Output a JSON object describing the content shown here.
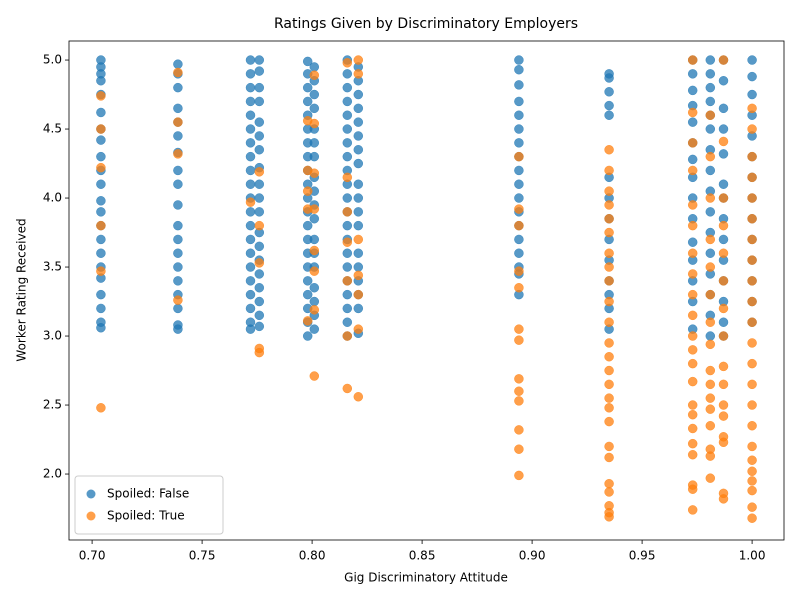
{
  "chart_data": {
    "type": "scatter",
    "title": "Ratings Given by Discriminatory Employers",
    "x_label": "Gig Discriminatory Attitude",
    "y_label": "Worker Rating Received",
    "xlim": [
      0.6895,
      1.0145
    ],
    "ylim": [
      1.522,
      5.138
    ],
    "xticks": [
      {
        "value": 0.7,
        "label": "0.70"
      },
      0.75,
      {
        "value": 0.8,
        "label": "0.80"
      },
      0.85,
      {
        "value": 0.9,
        "label": "0.90"
      },
      0.95,
      {
        "value": 1.0,
        "label": "1.00"
      }
    ],
    "yticks": [
      {
        "value": 2.0,
        "label": "2.0"
      },
      2.5,
      {
        "value": 3.0,
        "label": "3.0"
      },
      3.5,
      {
        "value": 4.0,
        "label": "4.0"
      },
      4.5,
      {
        "value": 5.0,
        "label": "5.0"
      }
    ],
    "legend": "lower left",
    "series": [
      {
        "name": "Spoiled: False",
        "color": "#1f77b4",
        "x": [
          0.704,
          0.704,
          0.704,
          0.704,
          0.704,
          0.704,
          0.704,
          0.704,
          0.704,
          0.704,
          0.704,
          0.704,
          0.704,
          0.704,
          0.704,
          0.704,
          0.704,
          0.704,
          0.704,
          0.704,
          0.704,
          0.704,
          0.739,
          0.739,
          0.739,
          0.739,
          0.739,
          0.739,
          0.739,
          0.739,
          0.739,
          0.739,
          0.739,
          0.739,
          0.739,
          0.739,
          0.739,
          0.739,
          0.739,
          0.739,
          0.739,
          0.772,
          0.772,
          0.772,
          0.772,
          0.772,
          0.772,
          0.772,
          0.772,
          0.772,
          0.772,
          0.772,
          0.772,
          0.772,
          0.772,
          0.772,
          0.772,
          0.772,
          0.772,
          0.772,
          0.772,
          0.772,
          0.776,
          0.776,
          0.776,
          0.776,
          0.776,
          0.776,
          0.776,
          0.776,
          0.776,
          0.776,
          0.776,
          0.776,
          0.776,
          0.776,
          0.776,
          0.776,
          0.776,
          0.776,
          0.776,
          0.798,
          0.798,
          0.798,
          0.798,
          0.798,
          0.798,
          0.798,
          0.798,
          0.798,
          0.798,
          0.798,
          0.798,
          0.798,
          0.798,
          0.798,
          0.798,
          0.798,
          0.798,
          0.798,
          0.798,
          0.798,
          0.801,
          0.801,
          0.801,
          0.801,
          0.801,
          0.801,
          0.801,
          0.801,
          0.801,
          0.801,
          0.801,
          0.801,
          0.801,
          0.801,
          0.801,
          0.801,
          0.801,
          0.801,
          0.816,
          0.816,
          0.816,
          0.816,
          0.816,
          0.816,
          0.816,
          0.816,
          0.816,
          0.816,
          0.816,
          0.816,
          0.816,
          0.816,
          0.816,
          0.816,
          0.816,
          0.816,
          0.816,
          0.816,
          0.816,
          0.821,
          0.821,
          0.821,
          0.821,
          0.821,
          0.821,
          0.821,
          0.821,
          0.821,
          0.821,
          0.821,
          0.821,
          0.821,
          0.821,
          0.821,
          0.821,
          0.821,
          0.821,
          0.894,
          0.894,
          0.894,
          0.894,
          0.894,
          0.894,
          0.894,
          0.894,
          0.894,
          0.894,
          0.894,
          0.894,
          0.894,
          0.894,
          0.894,
          0.894,
          0.894,
          0.894,
          0.935,
          0.935,
          0.935,
          0.935,
          0.935,
          0.935,
          0.935,
          0.935,
          0.935,
          0.935,
          0.935,
          0.935,
          0.935,
          0.935,
          0.973,
          0.973,
          0.973,
          0.973,
          0.973,
          0.973,
          0.973,
          0.973,
          0.973,
          0.973,
          0.973,
          0.973,
          0.973,
          0.973,
          0.973,
          0.981,
          0.981,
          0.981,
          0.981,
          0.981,
          0.981,
          0.981,
          0.981,
          0.981,
          0.981,
          0.981,
          0.981,
          0.981,
          0.981,
          0.981,
          0.981,
          0.987,
          0.987,
          0.987,
          0.987,
          0.987,
          0.987,
          0.987,
          0.987,
          0.987,
          0.987,
          0.987,
          0.987,
          0.987,
          0.987,
          1.0,
          1.0,
          1.0,
          1.0,
          1.0,
          1.0,
          1.0,
          1.0,
          1.0,
          1.0,
          1.0,
          1.0,
          1.0,
          1.0
        ],
        "values": [
          5.0,
          4.95,
          4.9,
          4.85,
          4.75,
          4.62,
          4.5,
          4.42,
          4.3,
          4.2,
          4.1,
          3.98,
          3.9,
          3.8,
          3.7,
          3.6,
          3.5,
          3.42,
          3.3,
          3.2,
          3.1,
          3.06,
          4.97,
          4.9,
          4.8,
          4.65,
          4.55,
          4.45,
          4.33,
          4.2,
          4.1,
          3.95,
          3.8,
          3.7,
          3.6,
          3.5,
          3.4,
          3.3,
          3.2,
          3.08,
          3.05,
          5.0,
          4.9,
          4.8,
          4.7,
          4.6,
          4.5,
          4.4,
          4.3,
          4.2,
          4.1,
          4.0,
          3.9,
          3.8,
          3.7,
          3.6,
          3.5,
          3.4,
          3.3,
          3.2,
          3.1,
          3.05,
          5.0,
          4.92,
          4.8,
          4.7,
          4.55,
          4.45,
          4.35,
          4.22,
          4.1,
          4.0,
          3.9,
          3.75,
          3.65,
          3.55,
          3.45,
          3.35,
          3.25,
          3.15,
          3.07,
          4.99,
          4.9,
          4.8,
          4.7,
          4.6,
          4.5,
          4.4,
          4.3,
          4.2,
          4.1,
          4.0,
          3.9,
          3.8,
          3.7,
          3.6,
          3.5,
          3.4,
          3.3,
          3.2,
          3.1,
          3.0,
          4.95,
          4.85,
          4.75,
          4.65,
          4.5,
          4.4,
          4.3,
          4.15,
          4.05,
          3.95,
          3.85,
          3.7,
          3.6,
          3.5,
          3.35,
          3.25,
          3.15,
          3.05,
          5.0,
          4.9,
          4.8,
          4.7,
          4.6,
          4.5,
          4.4,
          4.3,
          4.2,
          4.1,
          4.0,
          3.9,
          3.8,
          3.7,
          3.6,
          3.5,
          3.4,
          3.3,
          3.2,
          3.1,
          3.0,
          4.95,
          4.85,
          4.75,
          4.65,
          4.55,
          4.45,
          4.35,
          4.25,
          4.1,
          4.0,
          3.9,
          3.8,
          3.6,
          3.5,
          3.4,
          3.3,
          3.2,
          3.02,
          5.0,
          4.93,
          4.82,
          4.7,
          4.6,
          4.5,
          4.4,
          4.3,
          4.2,
          4.1,
          4.0,
          3.9,
          3.8,
          3.7,
          3.6,
          3.5,
          3.45,
          3.3,
          4.9,
          4.87,
          4.77,
          4.67,
          4.6,
          4.15,
          4.0,
          3.85,
          3.7,
          3.55,
          3.4,
          3.3,
          3.2,
          3.05,
          5.0,
          4.9,
          4.78,
          4.67,
          4.55,
          4.4,
          4.28,
          4.15,
          4.0,
          3.85,
          3.68,
          3.55,
          3.4,
          3.25,
          3.05,
          5.0,
          4.9,
          4.8,
          4.7,
          4.6,
          4.5,
          4.35,
          4.2,
          4.05,
          3.9,
          3.75,
          3.6,
          3.45,
          3.3,
          3.15,
          3.0,
          5.0,
          4.85,
          4.65,
          4.5,
          4.32,
          4.1,
          4.0,
          3.85,
          3.7,
          3.55,
          3.4,
          3.25,
          3.1,
          3.0,
          5.0,
          4.88,
          4.75,
          4.6,
          4.45,
          4.3,
          4.15,
          4.0,
          3.85,
          3.7,
          3.55,
          3.4,
          3.25,
          3.1
        ]
      },
      {
        "name": "Spoiled: True",
        "color": "#ff7f0e",
        "x": [
          0.704,
          0.704,
          0.704,
          0.704,
          0.704,
          0.704,
          0.739,
          0.739,
          0.739,
          0.739,
          0.772,
          0.776,
          0.776,
          0.776,
          0.776,
          0.776,
          0.798,
          0.798,
          0.798,
          0.798,
          0.798,
          0.801,
          0.801,
          0.801,
          0.801,
          0.801,
          0.801,
          0.801,
          0.801,
          0.816,
          0.816,
          0.816,
          0.816,
          0.816,
          0.816,
          0.816,
          0.821,
          0.821,
          0.821,
          0.821,
          0.821,
          0.821,
          0.821,
          0.894,
          0.894,
          0.894,
          0.894,
          0.894,
          0.894,
          0.894,
          0.894,
          0.894,
          0.894,
          0.894,
          0.894,
          0.894,
          0.935,
          0.935,
          0.935,
          0.935,
          0.935,
          0.935,
          0.935,
          0.935,
          0.935,
          0.935,
          0.935,
          0.935,
          0.935,
          0.935,
          0.935,
          0.935,
          0.935,
          0.935,
          0.935,
          0.935,
          0.935,
          0.935,
          0.935,
          0.935,
          0.935,
          0.973,
          0.973,
          0.973,
          0.973,
          0.973,
          0.973,
          0.973,
          0.973,
          0.973,
          0.973,
          0.973,
          0.973,
          0.973,
          0.973,
          0.973,
          0.973,
          0.973,
          0.973,
          0.973,
          0.973,
          0.973,
          0.973,
          0.981,
          0.981,
          0.981,
          0.981,
          0.981,
          0.981,
          0.981,
          0.981,
          0.981,
          0.981,
          0.981,
          0.981,
          0.981,
          0.981,
          0.981,
          0.981,
          0.987,
          0.987,
          0.987,
          0.987,
          0.987,
          0.987,
          0.987,
          0.987,
          0.987,
          0.987,
          0.987,
          0.987,
          0.987,
          0.987,
          0.987,
          0.987,
          1.0,
          1.0,
          1.0,
          1.0,
          1.0,
          1.0,
          1.0,
          1.0,
          1.0,
          1.0,
          1.0,
          1.0,
          1.0,
          1.0,
          1.0,
          1.0,
          1.0,
          1.0,
          1.0,
          1.0,
          1.0,
          1.0,
          1.0
        ],
        "values": [
          4.74,
          4.5,
          4.22,
          3.8,
          3.47,
          2.48,
          4.91,
          4.55,
          4.32,
          3.26,
          3.97,
          4.19,
          3.8,
          3.53,
          2.91,
          2.88,
          4.56,
          4.2,
          4.05,
          3.92,
          3.11,
          4.89,
          4.54,
          4.18,
          3.92,
          3.62,
          3.47,
          3.19,
          2.71,
          4.98,
          4.15,
          3.9,
          3.68,
          3.4,
          3.0,
          2.62,
          5.0,
          4.9,
          3.7,
          3.44,
          3.3,
          3.05,
          2.56,
          4.3,
          3.92,
          3.8,
          3.47,
          3.35,
          3.05,
          2.97,
          2.69,
          2.6,
          2.53,
          2.32,
          2.18,
          1.99,
          4.35,
          4.2,
          4.05,
          3.95,
          3.85,
          3.75,
          3.6,
          3.5,
          3.4,
          3.25,
          3.1,
          2.95,
          2.85,
          2.75,
          2.65,
          2.55,
          2.48,
          2.38,
          2.2,
          2.12,
          1.93,
          1.87,
          1.77,
          1.72,
          1.69,
          5.0,
          4.62,
          4.4,
          4.2,
          3.95,
          3.8,
          3.6,
          3.45,
          3.3,
          3.15,
          3.0,
          2.9,
          2.8,
          2.67,
          2.5,
          2.43,
          2.33,
          2.22,
          2.14,
          1.92,
          1.89,
          1.74,
          4.6,
          4.3,
          4.0,
          3.7,
          3.5,
          3.3,
          3.1,
          2.94,
          2.75,
          2.65,
          2.55,
          2.47,
          2.35,
          2.18,
          2.13,
          1.97,
          5.0,
          4.41,
          4.0,
          3.8,
          3.6,
          3.4,
          3.2,
          3.0,
          2.78,
          2.65,
          2.5,
          2.42,
          2.27,
          2.23,
          1.86,
          1.82,
          4.65,
          4.5,
          4.3,
          4.15,
          4.0,
          3.85,
          3.7,
          3.55,
          3.4,
          3.25,
          3.1,
          2.95,
          2.8,
          2.65,
          2.5,
          2.35,
          2.2,
          2.1,
          2.02,
          1.95,
          1.88,
          1.76,
          1.68
        ]
      }
    ]
  }
}
